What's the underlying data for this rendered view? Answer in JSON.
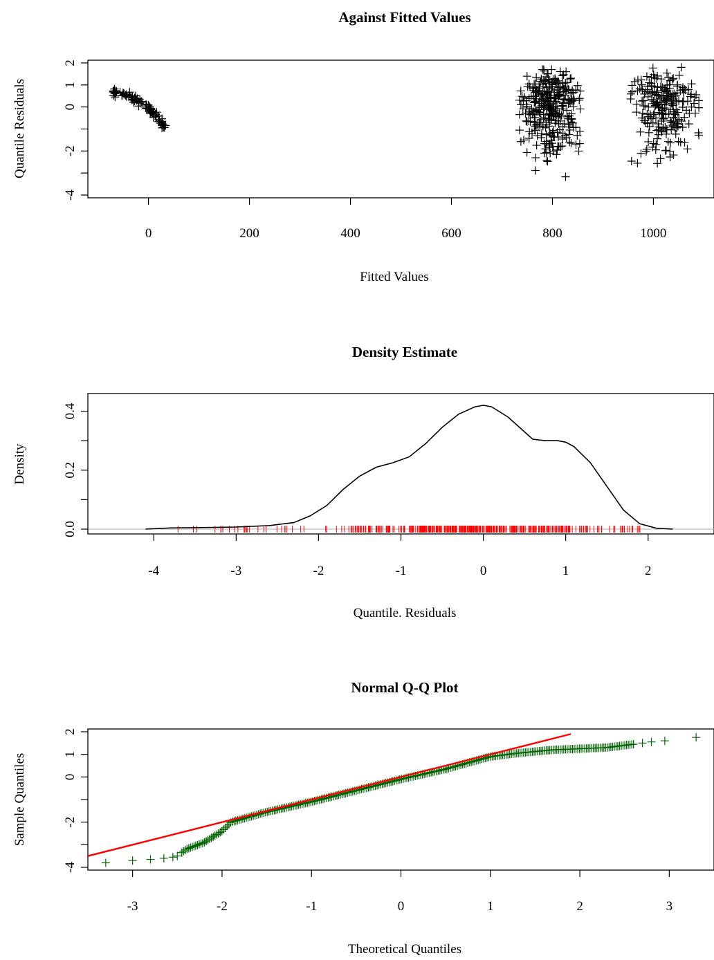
{
  "colors": {
    "points": "#000000",
    "density_line": "#000000",
    "rug": "#ff0000",
    "zero_line": "#bebebe",
    "qq_points": "#006400",
    "qq_line": "#ff0000"
  },
  "chart_data": [
    {
      "type": "scatter",
      "marker": "plus",
      "title": "Against Fitted Values",
      "xlabel": "Fitted Values",
      "ylabel": "Quantile Residuals",
      "xlim": [
        -120,
        1120
      ],
      "ylim": [
        -4,
        2
      ],
      "xticks": [
        "0",
        "200",
        "400",
        "600",
        "800",
        "1000"
      ],
      "yticks": [
        "-4",
        "-2",
        "0",
        "1",
        "2"
      ],
      "clusters": [
        {
          "x_range": [
            -70,
            35
          ],
          "y_trend": [
            [
              -70,
              0.7
            ],
            [
              -40,
              0.5
            ],
            [
              -10,
              0.15
            ],
            [
              15,
              -0.4
            ],
            [
              35,
              -1.0
            ]
          ],
          "n": 90
        },
        {
          "x_range": [
            735,
            855
          ],
          "y_range": [
            -3.8,
            1.7
          ],
          "n": 320
        },
        {
          "x_range": [
            955,
            1090
          ],
          "y_range": [
            -3.0,
            1.8
          ],
          "n": 220
        }
      ]
    },
    {
      "type": "line",
      "title": "Density Estimate",
      "xlabel": "Quantile. Residuals",
      "ylabel": "Density",
      "xlim": [
        -4.8,
        2.8
      ],
      "ylim": [
        0,
        0.42
      ],
      "xticks": [
        "-4",
        "-3",
        "-2",
        "-1",
        "0",
        "1",
        "2"
      ],
      "yticks": [
        "0.0",
        "0.2",
        "0.4"
      ],
      "x": [
        -4.1,
        -3.8,
        -3.5,
        -3.0,
        -2.6,
        -2.3,
        -2.1,
        -1.9,
        -1.7,
        -1.5,
        -1.3,
        -1.1,
        -0.9,
        -0.7,
        -0.5,
        -0.3,
        -0.1,
        0.0,
        0.1,
        0.3,
        0.5,
        0.6,
        0.75,
        0.9,
        1.0,
        1.1,
        1.3,
        1.5,
        1.7,
        1.9,
        2.1,
        2.3
      ],
      "y": [
        0.0,
        0.004,
        0.005,
        0.007,
        0.012,
        0.022,
        0.045,
        0.08,
        0.135,
        0.18,
        0.21,
        0.225,
        0.245,
        0.29,
        0.345,
        0.39,
        0.415,
        0.42,
        0.415,
        0.38,
        0.33,
        0.305,
        0.3,
        0.3,
        0.295,
        0.28,
        0.225,
        0.145,
        0.065,
        0.018,
        0.003,
        0.0
      ],
      "rug_range": [
        -3.8,
        1.9
      ]
    },
    {
      "type": "scatter",
      "marker": "plus",
      "title": "Normal Q-Q Plot",
      "xlabel": "Theoretical Quantiles",
      "ylabel": "Sample Quantiles",
      "xlim": [
        -3.5,
        3.5
      ],
      "ylim": [
        -4,
        2
      ],
      "xticks": [
        "-3",
        "-2",
        "-1",
        "0",
        "1",
        "2",
        "3"
      ],
      "yticks": [
        "-4",
        "-2",
        "0",
        "1",
        "2"
      ],
      "qq_x": [
        -3.3,
        -3.0,
        -2.8,
        -2.65,
        -2.55,
        -2.5,
        -2.4,
        -2.2,
        -2.0,
        -1.9,
        -1.5,
        -1.0,
        -0.5,
        0.0,
        0.5,
        1.0,
        1.3,
        1.7,
        2.0,
        2.3,
        2.5,
        2.7,
        2.8,
        2.95,
        3.3
      ],
      "qq_y": [
        -3.8,
        -3.7,
        -3.65,
        -3.6,
        -3.55,
        -3.5,
        -3.2,
        -2.9,
        -2.4,
        -2.0,
        -1.55,
        -1.1,
        -0.6,
        -0.1,
        0.35,
        0.9,
        1.05,
        1.2,
        1.25,
        1.3,
        1.4,
        1.5,
        1.55,
        1.6,
        1.75
      ],
      "reference_line": {
        "x": [
          -3.5,
          1.9
        ],
        "y": [
          -3.5,
          1.9
        ]
      }
    }
  ]
}
